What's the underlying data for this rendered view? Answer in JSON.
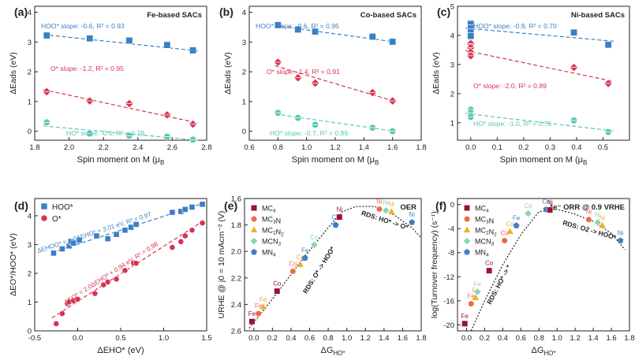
{
  "colors": {
    "hoo": "#3b7fc4",
    "o": "#d6334f",
    "ho": "#58c6b4",
    "mc4": "#9c1236",
    "mc3n": "#ee6a45",
    "mc2n2": "#f3ad2c",
    "mcn3": "#8dd3b6",
    "mn4": "#3f7fc1"
  },
  "chart_data": [
    {
      "type": "scatter",
      "panel": "(a)",
      "title": "Fe-based SACs",
      "xlabel": "Spin moment on M (μB)",
      "ylabel": "ΔEads (eV)",
      "xlim": [
        1.8,
        2.8
      ],
      "ylim": [
        -0.3,
        4.2
      ],
      "xticks": [
        1.8,
        2.0,
        2.2,
        2.4,
        2.6,
        2.8
      ],
      "yticks": [
        0,
        1,
        2,
        3,
        4
      ],
      "series": [
        {
          "name": "HOO*",
          "label": "HOO* slope: -0.6, R² = 0.93",
          "marker": "square",
          "color": "#3b7fc4",
          "x": [
            1.87,
            2.12,
            2.35,
            2.57,
            2.72
          ],
          "y": [
            3.22,
            3.12,
            3.05,
            2.9,
            2.72
          ],
          "fit": [
            [
              1.85,
              3.25
            ],
            [
              2.75,
              2.7
            ]
          ]
        },
        {
          "name": "O*",
          "label": "O* slope: -1.2, R² = 0.95",
          "marker": "diamond",
          "color": "#d6334f",
          "x": [
            1.87,
            2.12,
            2.35,
            2.57,
            2.72
          ],
          "y": [
            1.33,
            1.02,
            0.93,
            0.55,
            0.24
          ],
          "fit": [
            [
              1.85,
              1.4
            ],
            [
              2.75,
              0.28
            ]
          ]
        },
        {
          "name": "HO*",
          "label": "HO* slope: -0.6, R² = 0.78",
          "marker": "circle",
          "color": "#58c6b4",
          "x": [
            1.87,
            2.12,
            2.35,
            2.57,
            2.72
          ],
          "y": [
            0.3,
            -0.08,
            -0.15,
            -0.18,
            -0.28
          ],
          "fit": [
            [
              1.85,
              0.18
            ],
            [
              2.75,
              -0.3
            ]
          ]
        }
      ]
    },
    {
      "type": "scatter",
      "panel": "(b)",
      "title": "Co-based SACs",
      "xlabel": "Spin moment on M (μB)",
      "ylabel": "ΔEads (eV)",
      "xlim": [
        0.6,
        1.8
      ],
      "ylim": [
        -0.3,
        4.2
      ],
      "xticks": [
        0.6,
        0.8,
        1.0,
        1.2,
        1.4,
        1.6,
        1.8
      ],
      "yticks": [
        0,
        1,
        2,
        3,
        4
      ],
      "series": [
        {
          "name": "HOO*",
          "label": "HOO* slope: -0.6, R² = 0.95",
          "marker": "square",
          "color": "#3b7fc4",
          "x": [
            0.8,
            0.94,
            1.06,
            1.46,
            1.6
          ],
          "y": [
            3.57,
            3.42,
            3.35,
            3.18,
            3.01
          ],
          "fit": [
            [
              0.78,
              3.55
            ],
            [
              1.62,
              3.0
            ]
          ]
        },
        {
          "name": "O*",
          "label": "O* slope: -1.4, R² = 0.91",
          "marker": "diamond",
          "color": "#d6334f",
          "x": [
            0.8,
            0.94,
            1.06,
            1.46,
            1.6
          ],
          "y": [
            2.32,
            1.8,
            1.62,
            1.3,
            1.02
          ],
          "fit": [
            [
              0.78,
              2.2
            ],
            [
              1.62,
              1.0
            ]
          ]
        },
        {
          "name": "HO*",
          "label": "HO* slope: -0.7, R² = 0.89",
          "marker": "circle",
          "color": "#58c6b4",
          "x": [
            0.8,
            0.94,
            1.06,
            1.46,
            1.6
          ],
          "y": [
            0.62,
            0.45,
            0.22,
            0.12,
            0.0
          ],
          "fit": [
            [
              0.78,
              0.58
            ],
            [
              1.62,
              0.0
            ]
          ]
        }
      ]
    },
    {
      "type": "scatter",
      "panel": "(c)",
      "title": "Ni-based SACs",
      "xlabel": "Spin moment on M (μB)",
      "ylabel": "ΔEads (eV)",
      "xlim": [
        -0.05,
        0.6
      ],
      "ylim": [
        0.4,
        5.0
      ],
      "xticks": [
        0.0,
        0.1,
        0.2,
        0.3,
        0.4,
        0.5
      ],
      "yticks": [
        1,
        2,
        3,
        4,
        5
      ],
      "series": [
        {
          "name": "HOO*",
          "label": "HOO* slope: -0.9, R² = 0.70",
          "marker": "square",
          "color": "#3b7fc4",
          "x": [
            0.0,
            0.0,
            0.0,
            0.0,
            0.39,
            0.52
          ],
          "y": [
            4.4,
            4.25,
            4.12,
            3.98,
            4.1,
            3.68
          ],
          "fit": [
            [
              -0.02,
              4.25
            ],
            [
              0.54,
              3.8
            ]
          ]
        },
        {
          "name": "O*",
          "label": "O* slope: -2.0, R² = 0.89",
          "marker": "diamond",
          "color": "#d6334f",
          "x": [
            0.0,
            0.0,
            0.0,
            0.0,
            0.39,
            0.52
          ],
          "y": [
            3.72,
            3.58,
            3.42,
            3.3,
            2.9,
            2.35
          ],
          "fit": [
            [
              -0.02,
              3.48
            ],
            [
              0.54,
              2.42
            ]
          ]
        },
        {
          "name": "HO*",
          "label": "HO* slope: -1.0, R² = 0.76",
          "marker": "circle",
          "color": "#58c6b4",
          "x": [
            0.0,
            0.0,
            0.0,
            0.0,
            0.39,
            0.52
          ],
          "y": [
            1.45,
            1.35,
            1.25,
            1.2,
            1.08,
            0.68
          ],
          "fit": [
            [
              -0.02,
              1.32
            ],
            [
              0.54,
              0.72
            ]
          ]
        }
      ]
    },
    {
      "type": "scatter",
      "panel": "(d)",
      "xlabel": "ΔEHO* (eV)",
      "ylabel": "ΔEO*/HOO* (eV)",
      "xlim": [
        -0.5,
        1.5
      ],
      "ylim": [
        0,
        4.6
      ],
      "xticks": [
        -0.5,
        0.0,
        0.5,
        1.0,
        1.5
      ],
      "yticks": [
        0,
        1,
        2,
        3,
        4
      ],
      "legend": [
        "HOO*",
        "O*"
      ],
      "series": [
        {
          "name": "HOO*",
          "marker": "square",
          "color": "#3b7fc4",
          "x": [
            -0.28,
            -0.18,
            -0.1,
            -0.08,
            -0.05,
            0.02,
            0.22,
            0.35,
            0.45,
            0.55,
            0.62,
            0.68,
            1.1,
            1.2,
            1.25,
            1.33,
            1.45
          ],
          "y": [
            2.7,
            2.85,
            2.95,
            3.1,
            3.05,
            3.15,
            3.3,
            3.2,
            3.35,
            3.5,
            3.6,
            3.7,
            4.12,
            4.15,
            4.22,
            4.3,
            4.4
          ],
          "fit": [
            [
              -0.3,
              2.72
            ],
            [
              1.45,
              4.42
            ]
          ],
          "fit_label": "ΔEHOO* = 1.0ΔEHO* + 3.01 eV, R² = 0.97"
        },
        {
          "name": "O*",
          "marker": "circle",
          "color": "#d6334f",
          "x": [
            -0.25,
            -0.18,
            -0.12,
            -0.1,
            -0.05,
            0.0,
            0.2,
            0.3,
            0.35,
            0.45,
            0.55,
            0.65,
            0.68,
            1.1,
            1.2,
            1.25,
            1.33,
            1.45
          ],
          "y": [
            0.25,
            0.6,
            0.95,
            1.0,
            1.05,
            1.1,
            1.3,
            1.6,
            1.7,
            1.8,
            2.1,
            2.35,
            2.35,
            2.9,
            3.1,
            3.3,
            3.5,
            3.75
          ],
          "fit": [
            [
              -0.3,
              0.45
            ],
            [
              1.45,
              3.8
            ]
          ],
          "fit_label": "ΔEO* = 2.0ΔEHO* + 0.94 eV, R² = 0.98"
        }
      ]
    },
    {
      "type": "volcano",
      "panel": "(e)",
      "title": "OER",
      "xlabel": "ΔGHO* (eV)",
      "ylabel": "URHE @ j0 = 10 mAcm⁻² (V)",
      "xlim": [
        -0.1,
        1.8
      ],
      "ylim": [
        2.6,
        1.6
      ],
      "xticks": [
        0.0,
        0.2,
        0.4,
        0.6,
        0.8,
        1.0,
        1.2,
        1.4,
        1.6,
        1.8
      ],
      "yticks": [
        2.6,
        2.4,
        2.2,
        2.0,
        1.8,
        1.6
      ],
      "legend": [
        "MC4",
        "MC3N",
        "MC2N2",
        "MCN3",
        "MN4"
      ],
      "annotations": [
        "RDS: O* -> HOO*",
        "RDS: HO* -> O*"
      ],
      "points": [
        {
          "label": "Fe",
          "group": "MC4",
          "marker": "square",
          "x": -0.02,
          "y": 2.53
        },
        {
          "label": "Fe",
          "group": "MC3N",
          "marker": "circle",
          "x": 0.05,
          "y": 2.47
        },
        {
          "label": "Fe",
          "group": "MC2N2",
          "marker": "triangle",
          "x": 0.1,
          "y": 2.42
        },
        {
          "label": "Co",
          "group": "MC4",
          "marker": "square",
          "x": 0.25,
          "y": 2.3
        },
        {
          "label": "Co",
          "group": "MC3N",
          "marker": "circle",
          "x": 0.42,
          "y": 2.15
        },
        {
          "label": "Co",
          "group": "MC2N2",
          "marker": "triangle",
          "x": 0.5,
          "y": 2.1
        },
        {
          "label": "Fe",
          "group": "MN4",
          "marker": "pentagon",
          "x": 0.55,
          "y": 2.05
        },
        {
          "label": "Co",
          "group": "MCN3",
          "marker": "diamond",
          "x": 0.65,
          "y": 1.95
        },
        {
          "label": "Co",
          "group": "MN4",
          "marker": "pentagon",
          "x": 0.88,
          "y": 1.8
        },
        {
          "label": "Ni",
          "group": "MC4",
          "marker": "square",
          "x": 0.92,
          "y": 1.74
        },
        {
          "label": "Ni",
          "group": "MC3N",
          "marker": "circle",
          "x": 1.35,
          "y": 1.68
        },
        {
          "label": "Ni",
          "group": "MC2N2",
          "marker": "triangle",
          "x": 1.48,
          "y": 1.7
        },
        {
          "label": "Ni",
          "group": "MCN3",
          "marker": "diamond",
          "x": 1.42,
          "y": 1.69
        },
        {
          "label": "Ni",
          "group": "MN4",
          "marker": "pentagon",
          "x": 1.7,
          "y": 1.78
        }
      ]
    },
    {
      "type": "volcano",
      "panel": "(f)",
      "title": "4e⁻ ORR @ 0.9 VRHE",
      "xlabel": "ΔGHO* (eV)",
      "ylabel": "log(Turnover frequency) (s⁻¹)",
      "xlim": [
        -0.1,
        1.8
      ],
      "ylim": [
        -21,
        1
      ],
      "xticks": [
        0.0,
        0.2,
        0.4,
        0.6,
        0.8,
        1.0,
        1.2,
        1.4,
        1.6,
        1.8
      ],
      "yticks": [
        -20,
        -16,
        -12,
        -8,
        -4,
        0
      ],
      "legend": [
        "MC4",
        "MC3N",
        "MC2N2",
        "MCN3",
        "MN4"
      ],
      "annotations": [
        "RDS: O2 -> HOO*",
        "RDS: HO* -> *"
      ],
      "points": [
        {
          "label": "Fe",
          "group": "MC4",
          "marker": "square",
          "x": -0.02,
          "y": -19.8
        },
        {
          "label": "Fe",
          "group": "MC3N",
          "marker": "circle",
          "x": 0.05,
          "y": -16.5
        },
        {
          "label": "Fe",
          "group": "MC2N2",
          "marker": "triangle",
          "x": 0.1,
          "y": -15.5
        },
        {
          "label": "Fe",
          "group": "MCN3",
          "marker": "diamond",
          "x": 0.12,
          "y": -14.5
        },
        {
          "label": "Co",
          "group": "MC4",
          "marker": "square",
          "x": 0.25,
          "y": -11.0
        },
        {
          "label": "Co",
          "group": "MC3N",
          "marker": "circle",
          "x": 0.42,
          "y": -6.0
        },
        {
          "label": "Co",
          "group": "MC2N2",
          "marker": "triangle",
          "x": 0.48,
          "y": -4.5
        },
        {
          "label": "Fe",
          "group": "MN4",
          "marker": "pentagon",
          "x": 0.55,
          "y": -3.5
        },
        {
          "label": "Co",
          "group": "MCN3",
          "marker": "diamond",
          "x": 0.68,
          "y": -1.5
        },
        {
          "label": "Co",
          "group": "MN4",
          "marker": "pentagon",
          "x": 0.88,
          "y": -0.8
        },
        {
          "label": "Ni",
          "group": "MC4",
          "marker": "square",
          "x": 0.92,
          "y": -0.9
        },
        {
          "label": "Ni",
          "group": "MC3N",
          "marker": "circle",
          "x": 1.35,
          "y": -2.5
        },
        {
          "label": "Ni",
          "group": "MCN3",
          "marker": "diamond",
          "x": 1.45,
          "y": -3.0
        },
        {
          "label": "Ni",
          "group": "MC2N2",
          "marker": "triangle",
          "x": 1.5,
          "y": -3.5
        },
        {
          "label": "Ni",
          "group": "MN4",
          "marker": "pentagon",
          "x": 1.7,
          "y": -6.0
        }
      ]
    }
  ]
}
